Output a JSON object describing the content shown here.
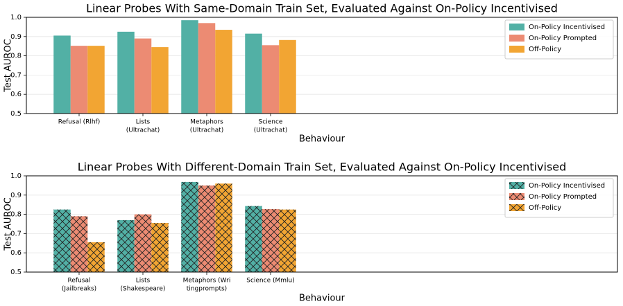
{
  "chart_data": [
    {
      "type": "bar",
      "title": "Linear Probes With Same-Domain Train Set, Evaluated Against On-Policy Incentivised",
      "xlabel": "Behaviour",
      "ylabel": "Test AUROC",
      "categories": [
        [
          "Refusal (Rlhf)"
        ],
        [
          "Lists",
          "(Ultrachat)"
        ],
        [
          "Metaphors",
          "(Ultrachat)"
        ],
        [
          "Science",
          "(Ultrachat)"
        ]
      ],
      "series": [
        {
          "name": "On-Policy Incentivised",
          "color": "#52b0a5",
          "values": [
            0.905,
            0.925,
            0.985,
            0.915
          ]
        },
        {
          "name": "On-Policy Prompted",
          "color": "#ec8b73",
          "values": [
            0.852,
            0.89,
            0.97,
            0.855
          ]
        },
        {
          "name": "Off-Policy",
          "color": "#f2a533",
          "values": [
            0.852,
            0.845,
            0.935,
            0.882
          ]
        }
      ],
      "ylim": [
        0.5,
        1.0
      ],
      "yticks": [
        0.5,
        0.6,
        0.7,
        0.8,
        0.9,
        {
          "value": 1.0,
          "label": "1.0"
        }
      ],
      "grid": true,
      "legend": "upper right"
    },
    {
      "type": "bar",
      "title": "Linear Probes With Different-Domain Train Set, Evaluated Against On-Policy Incentivised",
      "xlabel": "Behaviour",
      "ylabel": "Test AUROC",
      "categories": [
        [
          "Refusal",
          "(Jailbreaks)"
        ],
        [
          "Lists",
          "(Shakespeare)"
        ],
        [
          "Metaphors (Wri",
          "tingprompts)"
        ],
        [
          "Science (Mmlu)"
        ]
      ],
      "series": [
        {
          "name": "On-Policy Incentivised",
          "color": "#52b0a5",
          "values": [
            0.825,
            0.77,
            0.968,
            0.843
          ]
        },
        {
          "name": "On-Policy Prompted",
          "color": "#ec8b73",
          "values": [
            0.79,
            0.8,
            0.95,
            0.827
          ]
        },
        {
          "name": "Off-Policy",
          "color": "#f2a533",
          "values": [
            0.655,
            0.755,
            0.96,
            0.825
          ]
        }
      ],
      "ylim": [
        0.5,
        1.0
      ],
      "yticks": [
        0.5,
        0.6,
        0.7,
        0.8,
        0.9,
        {
          "value": 1.0,
          "label": "1.0"
        }
      ],
      "grid": true,
      "legend": "upper right",
      "hatch": "cross"
    }
  ]
}
